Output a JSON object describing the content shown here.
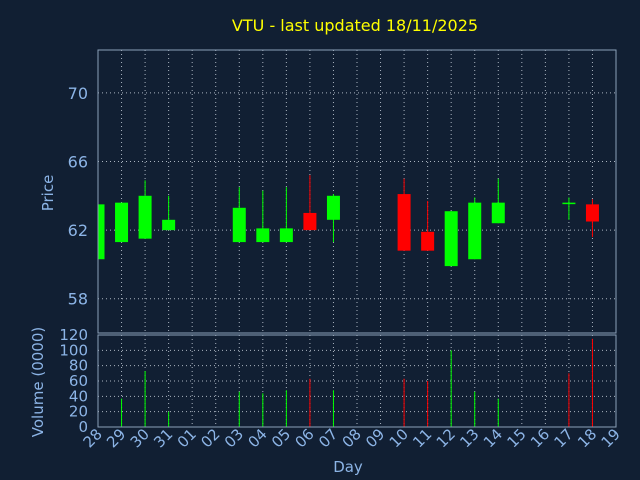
{
  "title": "VTU - last updated 18/11/2025",
  "chart_data": [
    {
      "type": "candlestick",
      "ylabel": "Price",
      "ylim": [
        56,
        72.5
      ],
      "yticks": [
        "58",
        "62",
        "66",
        "70"
      ],
      "x_days": [
        "28",
        "29",
        "30",
        "31",
        "01",
        "02",
        "03",
        "04",
        "05",
        "06",
        "07",
        "08",
        "09",
        "10",
        "11",
        "12",
        "13",
        "14",
        "15",
        "16",
        "17",
        "18",
        "19"
      ],
      "candles": [
        {
          "day": "28",
          "open": 60.3,
          "close": 63.5,
          "high": 63.5,
          "low": 60.3
        },
        {
          "day": "29",
          "open": 61.3,
          "close": 63.6,
          "high": 63.6,
          "low": 61.3
        },
        {
          "day": "30",
          "open": 61.5,
          "close": 64.0,
          "high": 64.9,
          "low": 61.5
        },
        {
          "day": "31",
          "open": 62.0,
          "close": 62.6,
          "high": 64.0,
          "low": 62.0
        },
        {
          "day": "03",
          "open": 61.3,
          "close": 63.3,
          "high": 64.5,
          "low": 61.3
        },
        {
          "day": "04",
          "open": 61.3,
          "close": 62.1,
          "high": 64.3,
          "low": 61.3
        },
        {
          "day": "05",
          "open": 61.3,
          "close": 62.1,
          "high": 64.5,
          "low": 61.3
        },
        {
          "day": "06",
          "open": 63.0,
          "close": 62.0,
          "high": 65.2,
          "low": 62.0
        },
        {
          "day": "07",
          "open": 62.6,
          "close": 64.0,
          "high": 64.1,
          "low": 61.3
        },
        {
          "day": "10",
          "open": 64.1,
          "close": 60.8,
          "high": 65.0,
          "low": 60.8
        },
        {
          "day": "11",
          "open": 61.9,
          "close": 60.8,
          "high": 63.7,
          "low": 60.8
        },
        {
          "day": "12",
          "open": 59.9,
          "close": 63.1,
          "high": 63.1,
          "low": 59.9
        },
        {
          "day": "13",
          "open": 60.3,
          "close": 63.6,
          "high": 63.9,
          "low": 60.3
        },
        {
          "day": "14",
          "open": 62.4,
          "close": 63.6,
          "high": 65.0,
          "low": 62.4
        },
        {
          "day": "17",
          "open": 63.6,
          "close": 63.6,
          "high": 63.9,
          "low": 62.6
        },
        {
          "day": "18",
          "open": 63.5,
          "close": 62.5,
          "high": 63.8,
          "low": 61.6
        }
      ]
    },
    {
      "type": "bar",
      "ylabel": "Volume (0000)",
      "xlabel": "Day",
      "ylim": [
        0,
        120
      ],
      "yticks": [
        "0",
        "20",
        "40",
        "60",
        "80",
        "100",
        "120"
      ],
      "volumes": [
        {
          "day": "29",
          "value": 37,
          "dir": "up"
        },
        {
          "day": "30",
          "value": 73,
          "dir": "up"
        },
        {
          "day": "31",
          "value": 20,
          "dir": "up"
        },
        {
          "day": "03",
          "value": 46,
          "dir": "up"
        },
        {
          "day": "04",
          "value": 44,
          "dir": "up"
        },
        {
          "day": "05",
          "value": 48,
          "dir": "up"
        },
        {
          "day": "06",
          "value": 63,
          "dir": "down"
        },
        {
          "day": "07",
          "value": 48,
          "dir": "up"
        },
        {
          "day": "10",
          "value": 63,
          "dir": "down"
        },
        {
          "day": "11",
          "value": 60,
          "dir": "down"
        },
        {
          "day": "12",
          "value": 100,
          "dir": "up"
        },
        {
          "day": "13",
          "value": 46,
          "dir": "up"
        },
        {
          "day": "14",
          "value": 37,
          "dir": "up"
        },
        {
          "day": "17",
          "value": 70,
          "dir": "down"
        },
        {
          "day": "18",
          "value": 115,
          "dir": "down"
        }
      ]
    }
  ],
  "colors": {
    "background": "#111f33",
    "title": "#ffff00",
    "axis_text": "#8cb4e6",
    "frame": "#8ca0b8",
    "grid": "#aab4c0",
    "up": "#00ff00",
    "down": "#ff0000"
  }
}
